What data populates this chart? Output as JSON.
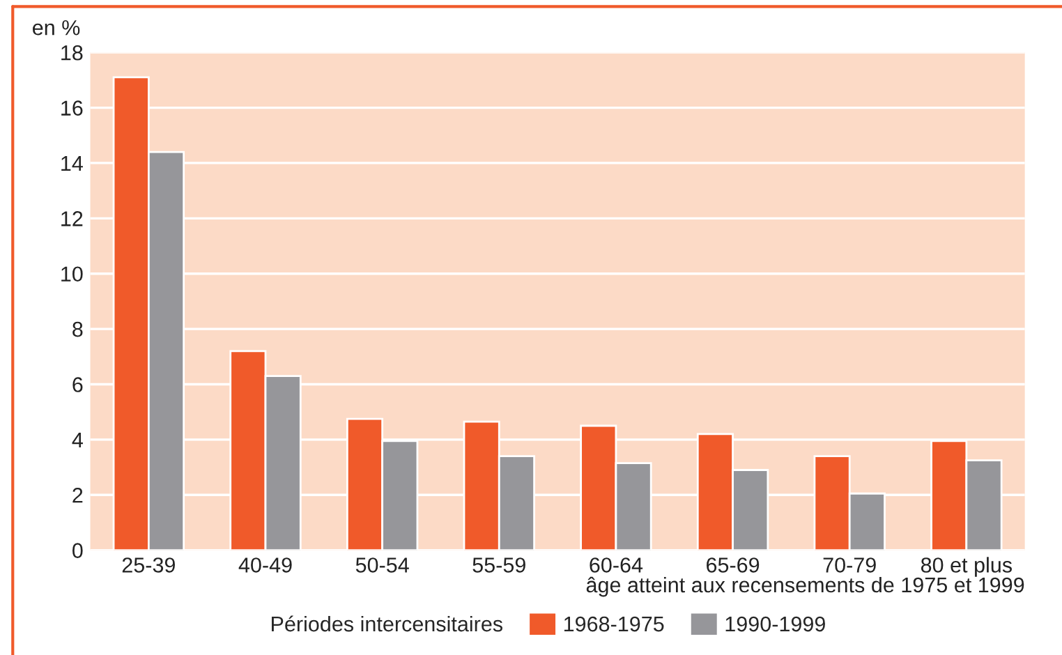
{
  "chart_data": {
    "type": "bar",
    "ylabel": "en %",
    "xlabel": "âge atteint aux recensements de 1975 et 1999",
    "legend_title": "Périodes intercensitaires",
    "categories": [
      "25-39",
      "40-49",
      "50-54",
      "55-59",
      "60-64",
      "65-69",
      "70-79",
      "80 et plus"
    ],
    "series": [
      {
        "name": "1968-1975",
        "color": "#f05a2a",
        "values": [
          17.1,
          7.2,
          4.75,
          4.65,
          4.5,
          4.2,
          3.4,
          3.95
        ]
      },
      {
        "name": "1990-1999",
        "color": "#96969a",
        "values": [
          14.4,
          6.3,
          3.95,
          3.4,
          3.15,
          2.9,
          2.05,
          3.25
        ]
      }
    ],
    "ylim": [
      0,
      18
    ],
    "yticks": [
      0,
      2,
      4,
      6,
      8,
      10,
      12,
      14,
      16,
      18
    ],
    "grid": "y",
    "legend": "bottom"
  }
}
